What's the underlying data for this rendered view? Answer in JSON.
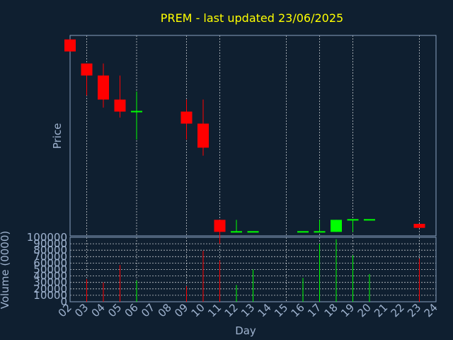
{
  "colors": {
    "background": "#0f1f30",
    "axis": "#8aa2bf",
    "label": "#9fb3cf",
    "title": "#ffff00",
    "up": "#00ff00",
    "down": "#ff0000",
    "grid": "#ffffff"
  },
  "chart_data": {
    "type": "candlestick",
    "title": "PREM - last updated 23/06/2025",
    "xlabel": "Day",
    "price_ylabel": "Price",
    "volume_ylabel": "Volume (0000)",
    "x_ticks": [
      "02",
      "03",
      "04",
      "05",
      "06",
      "07",
      "08",
      "09",
      "10",
      "11",
      "12",
      "13",
      "14",
      "15",
      "16",
      "17",
      "18",
      "19",
      "20",
      "21",
      "22",
      "23",
      "24"
    ],
    "volume_ticks": [
      "0",
      "10000",
      "20000",
      "30000",
      "40000",
      "50000",
      "60000",
      "70000",
      "80000",
      "90000",
      "100000"
    ],
    "volume_range": [
      0,
      100000
    ],
    "price_range": [
      0,
      100
    ],
    "vertical_grid_days": [
      3,
      6,
      9,
      11,
      15,
      17,
      19,
      23
    ],
    "candles": [
      {
        "day": 2.0,
        "open": 98,
        "high": 98,
        "low": 92,
        "close": 92,
        "color": "down"
      },
      {
        "day": 3.0,
        "open": 86,
        "high": 86,
        "low": 70,
        "close": 80,
        "color": "down"
      },
      {
        "day": 4.0,
        "open": 80,
        "high": 86,
        "low": 64,
        "close": 68,
        "color": "down"
      },
      {
        "day": 5.0,
        "open": 68,
        "high": 80,
        "low": 59,
        "close": 62,
        "color": "down"
      },
      {
        "day": 6.0,
        "open": 62,
        "high": 72,
        "low": 48,
        "close": 62,
        "color": "up"
      },
      {
        "day": 9.0,
        "open": 62,
        "high": 68,
        "low": 48,
        "close": 56,
        "color": "down"
      },
      {
        "day": 10.0,
        "open": 56,
        "high": 68,
        "low": 40,
        "close": 44,
        "color": "down"
      },
      {
        "day": 11.0,
        "open": 8,
        "high": 8,
        "low": -4,
        "close": 2,
        "color": "down"
      },
      {
        "day": 12.0,
        "open": 2,
        "high": 8,
        "low": 2,
        "close": 2,
        "color": "up"
      },
      {
        "day": 13.0,
        "open": 2,
        "high": 2,
        "low": 2,
        "close": 2,
        "color": "up"
      },
      {
        "day": 16.0,
        "open": 2,
        "high": 2,
        "low": 2,
        "close": 2,
        "color": "up"
      },
      {
        "day": 17.0,
        "open": 2,
        "high": 8,
        "low": 2,
        "close": 2,
        "color": "up"
      },
      {
        "day": 18.0,
        "open": 2,
        "high": 8,
        "low": 2,
        "close": 8,
        "color": "up"
      },
      {
        "day": 19.0,
        "open": 8,
        "high": 8,
        "low": 2,
        "close": 8,
        "color": "up"
      },
      {
        "day": 20.0,
        "open": 8,
        "high": 8,
        "low": 8,
        "close": 8,
        "color": "up"
      },
      {
        "day": 23.0,
        "open": 6,
        "high": 6,
        "low": 4,
        "close": 4,
        "color": "down"
      }
    ],
    "volumes": [
      {
        "day": 3.0,
        "value": 35000,
        "color": "down"
      },
      {
        "day": 4.0,
        "value": 30000,
        "color": "down"
      },
      {
        "day": 5.0,
        "value": 57000,
        "color": "down"
      },
      {
        "day": 6.0,
        "value": 33000,
        "color": "up"
      },
      {
        "day": 9.0,
        "value": 24000,
        "color": "down"
      },
      {
        "day": 10.0,
        "value": 79000,
        "color": "down"
      },
      {
        "day": 11.0,
        "value": 64000,
        "color": "down"
      },
      {
        "day": 12.0,
        "value": 26000,
        "color": "up"
      },
      {
        "day": 13.0,
        "value": 50000,
        "color": "up"
      },
      {
        "day": 16.0,
        "value": 37000,
        "color": "up"
      },
      {
        "day": 17.0,
        "value": 90000,
        "color": "up"
      },
      {
        "day": 18.0,
        "value": 97000,
        "color": "up"
      },
      {
        "day": 19.0,
        "value": 72000,
        "color": "up"
      },
      {
        "day": 20.0,
        "value": 43000,
        "color": "up"
      },
      {
        "day": 23.0,
        "value": 67000,
        "color": "down"
      }
    ]
  }
}
